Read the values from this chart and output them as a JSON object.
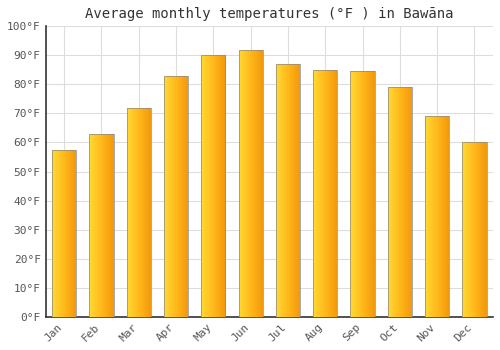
{
  "title": "Average monthly temperatures (°F ) in Bawāna",
  "months": [
    "Jan",
    "Feb",
    "Mar",
    "Apr",
    "May",
    "Jun",
    "Jul",
    "Aug",
    "Sep",
    "Oct",
    "Nov",
    "Dec"
  ],
  "values": [
    57.5,
    63,
    72,
    83,
    90,
    92,
    87,
    85,
    84.5,
    79,
    69,
    60
  ],
  "bar_color_left": "#FFB300",
  "bar_color_right": "#FFA000",
  "bar_color_mid": "#FFD54F",
  "ylim": [
    0,
    100
  ],
  "yticks": [
    0,
    10,
    20,
    30,
    40,
    50,
    60,
    70,
    80,
    90,
    100
  ],
  "ytick_labels": [
    "0°F",
    "10°F",
    "20°F",
    "30°F",
    "40°F",
    "50°F",
    "60°F",
    "70°F",
    "80°F",
    "90°F",
    "100°F"
  ],
  "background_color": "#ffffff",
  "plot_bg_color": "#f5f5f5",
  "grid_color": "#dddddd",
  "title_fontsize": 10,
  "tick_fontsize": 8,
  "figsize": [
    5.0,
    3.5
  ],
  "dpi": 100,
  "bar_edge_color": "#888888",
  "bar_edge_width": 0.5
}
